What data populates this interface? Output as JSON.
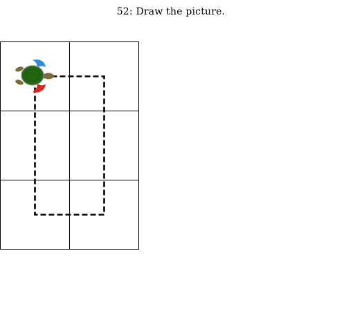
{
  "puzzle": {
    "title": "52: Draw the picture."
  },
  "grid": {
    "rows": 3,
    "cols": 2
  },
  "colors": {
    "grid_line": "#000000",
    "path": "#000000",
    "turtle_shell": "#236612",
    "turtle_body": "#7a6b38",
    "turtle_eye": "#8a8a8a",
    "flipper_front": "#2a8de0",
    "flipper_back": "#e0241c"
  },
  "turtle": {
    "icon": "turtle-icon",
    "heading": "east"
  }
}
